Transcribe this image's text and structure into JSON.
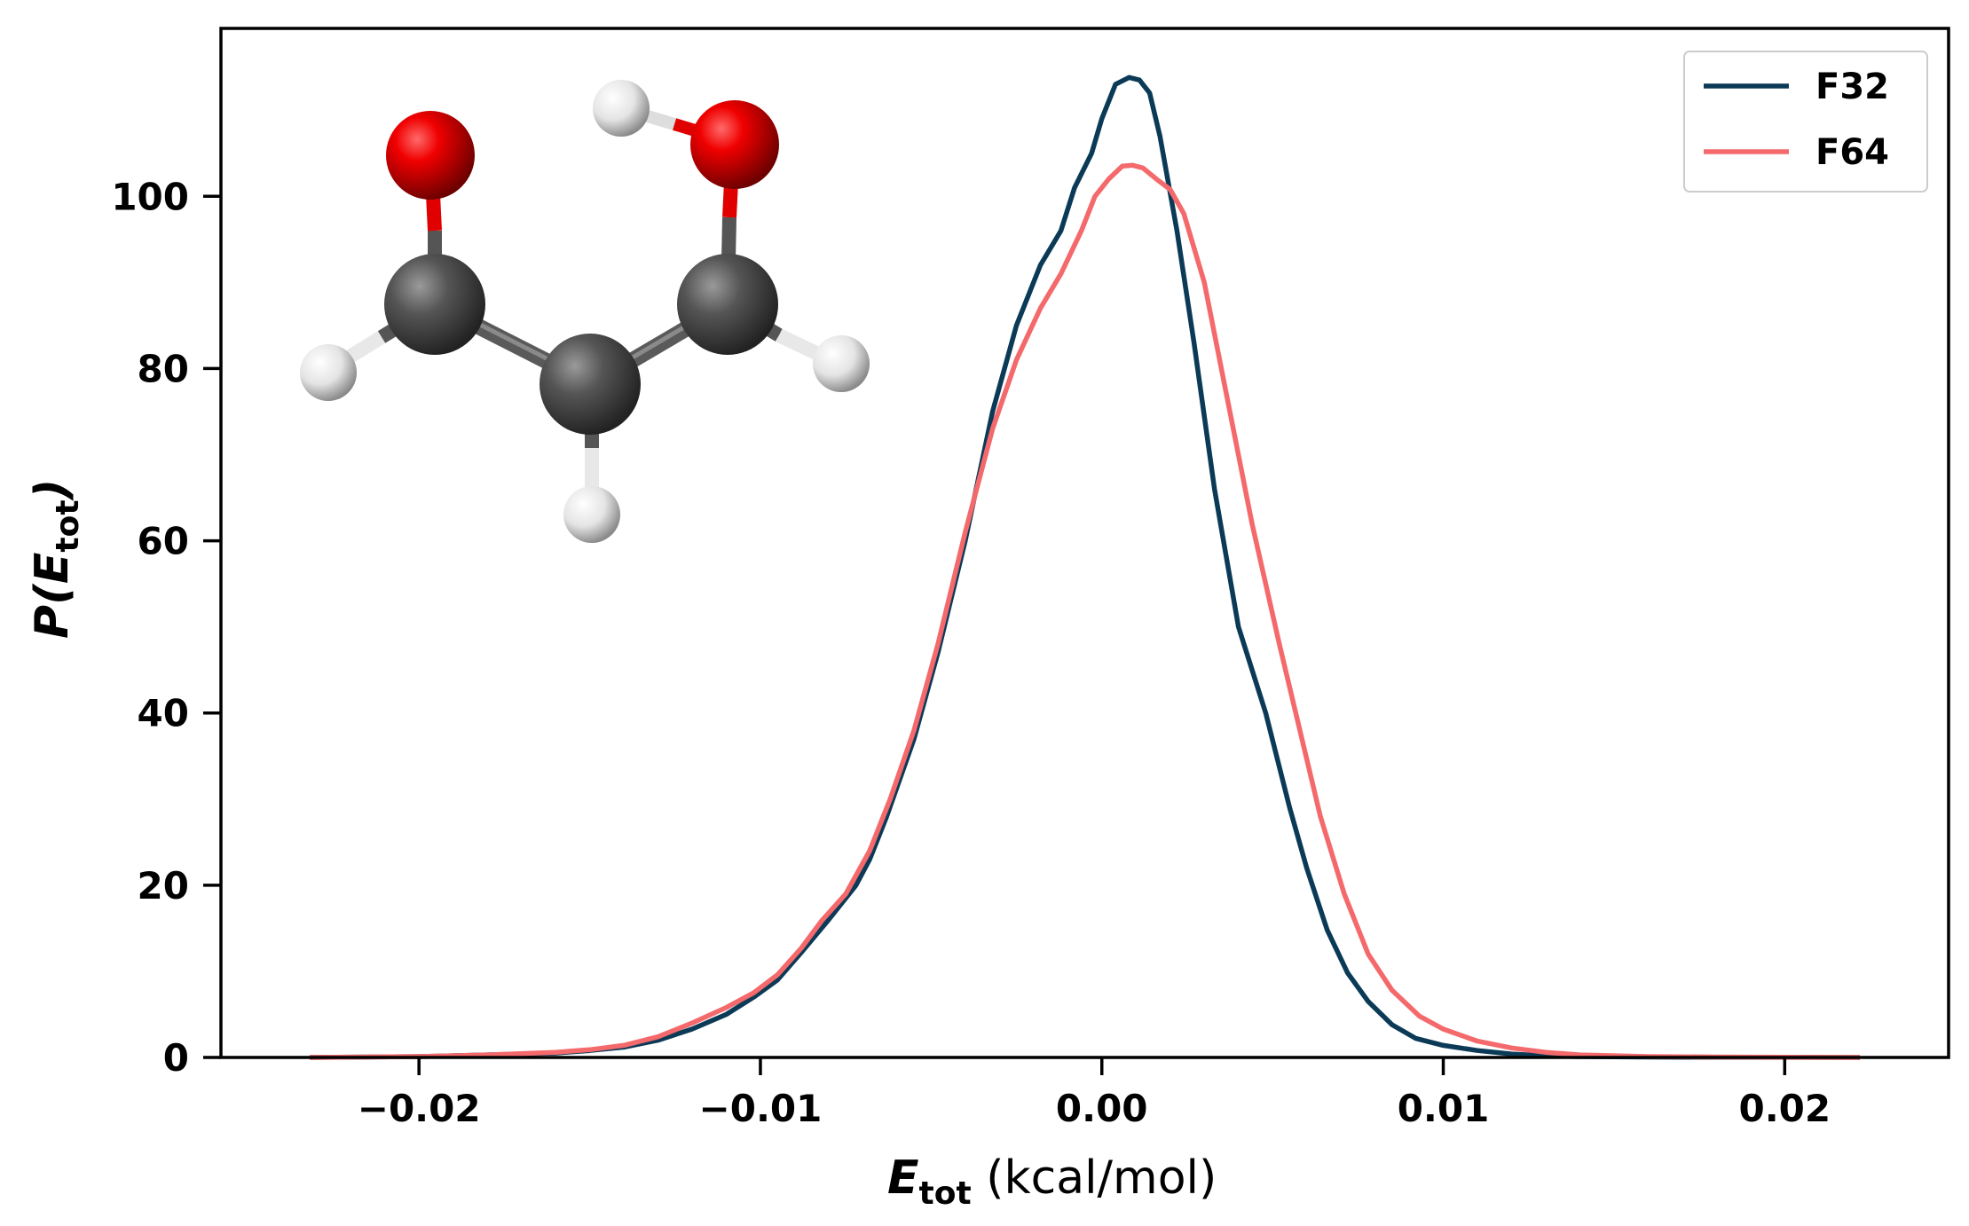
{
  "chart_data": {
    "type": "line",
    "xlabel_main": "E",
    "xlabel_sub": "tot",
    "xlabel_unit": " (kcal/mol)",
    "ylabel_pre": "P(",
    "ylabel_main": "E",
    "ylabel_sub": "tot",
    "ylabel_post": ")",
    "xlim": [
      -0.0258,
      0.0248
    ],
    "ylim": [
      0,
      119.5
    ],
    "xticks": [
      -0.02,
      -0.01,
      0.0,
      0.01,
      0.02
    ],
    "xtick_labels": [
      "−0.02",
      "−0.01",
      "0.00",
      "0.01",
      "0.02"
    ],
    "yticks": [
      0,
      20,
      40,
      60,
      80,
      100
    ],
    "ytick_labels": [
      "0",
      "20",
      "40",
      "60",
      "80",
      "100"
    ],
    "grid": false,
    "legend_position": "top-right",
    "series": [
      {
        "name": "F32",
        "color": "#0b3a57",
        "x": [
          -0.0232,
          -0.02,
          -0.018,
          -0.016,
          -0.015,
          -0.014,
          -0.013,
          -0.012,
          -0.011,
          -0.0102,
          -0.0095,
          -0.0088,
          -0.008,
          -0.0072,
          -0.0068,
          -0.0063,
          -0.0055,
          -0.0048,
          -0.004,
          -0.0032,
          -0.0025,
          -0.0018,
          -0.0012,
          -0.0008,
          -0.0003,
          0.0,
          0.0004,
          0.0008,
          0.0011,
          0.0014,
          0.0017,
          0.0022,
          0.0027,
          0.0033,
          0.004,
          0.0048,
          0.0055,
          0.006,
          0.0066,
          0.0072,
          0.0078,
          0.0085,
          0.0092,
          0.01,
          0.011,
          0.012,
          0.013,
          0.014,
          0.016,
          0.018,
          0.02,
          0.0222
        ],
        "y": [
          0,
          0.1,
          0.3,
          0.5,
          0.8,
          1.2,
          2.0,
          3.3,
          5.0,
          7.0,
          9.0,
          12.2,
          16.0,
          20.0,
          23.0,
          28.0,
          37.0,
          47.0,
          60.0,
          75.0,
          85.0,
          92.0,
          96.0,
          101.0,
          105.0,
          109.0,
          113.0,
          113.8,
          113.5,
          112.0,
          107.0,
          96.0,
          83.0,
          66.0,
          50.0,
          40.0,
          29.0,
          22.0,
          14.8,
          9.8,
          6.5,
          3.8,
          2.2,
          1.4,
          0.8,
          0.4,
          0.2,
          0.1,
          0.05,
          0.02,
          0.01,
          0
        ]
      },
      {
        "name": "F64",
        "color": "#f4696b",
        "x": [
          -0.0232,
          -0.02,
          -0.018,
          -0.016,
          -0.015,
          -0.014,
          -0.013,
          -0.012,
          -0.011,
          -0.0102,
          -0.0095,
          -0.0088,
          -0.0082,
          -0.0075,
          -0.0068,
          -0.0062,
          -0.0055,
          -0.0048,
          -0.004,
          -0.0032,
          -0.0025,
          -0.0018,
          -0.0012,
          -0.0006,
          -0.0002,
          0.0002,
          0.0006,
          0.0009,
          0.0012,
          0.0016,
          0.002,
          0.0024,
          0.003,
          0.0037,
          0.0044,
          0.0052,
          0.0058,
          0.0064,
          0.0071,
          0.0078,
          0.0085,
          0.0093,
          0.01,
          0.011,
          0.012,
          0.013,
          0.014,
          0.016,
          0.018,
          0.02,
          0.0222
        ],
        "y": [
          0,
          0.1,
          0.3,
          0.6,
          0.9,
          1.4,
          2.4,
          4.0,
          5.8,
          7.5,
          9.6,
          12.7,
          15.9,
          19.0,
          24.0,
          30.0,
          38.0,
          48.0,
          61.0,
          73.0,
          81.0,
          87.0,
          91.0,
          96.0,
          100.0,
          102.0,
          103.5,
          103.6,
          103.3,
          102.0,
          100.8,
          98.0,
          90.0,
          76.0,
          62.0,
          48.0,
          38.0,
          28.0,
          19.0,
          12.0,
          7.8,
          4.8,
          3.3,
          1.9,
          1.1,
          0.6,
          0.3,
          0.1,
          0.05,
          0.02,
          0
        ]
      }
    ]
  }
}
